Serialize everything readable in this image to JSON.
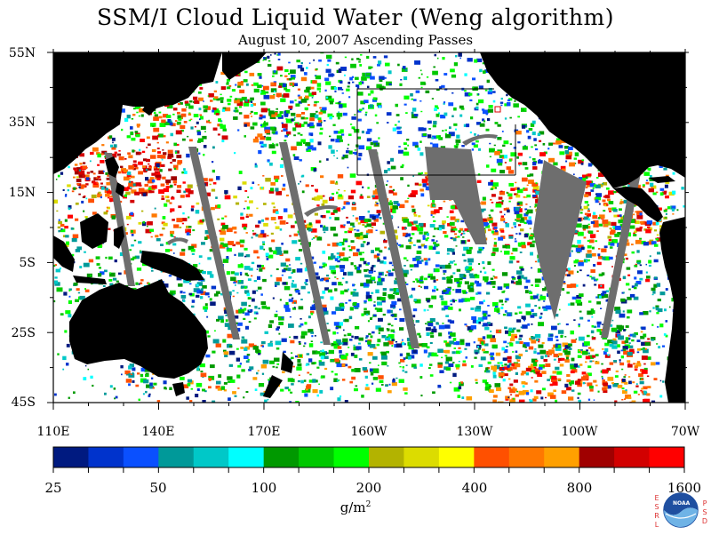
{
  "title": "SSM/I Cloud Liquid Water (Weng algorithm)",
  "subtitle": "August 10, 2007  Ascending Passes",
  "lat_labels": [
    "55N",
    "35N",
    "15N",
    "5S",
    "25S",
    "45S"
  ],
  "lon_labels": [
    "110E",
    "140E",
    "170E",
    "160W",
    "130W",
    "100W",
    "70W"
  ],
  "colorbar": {
    "labels": [
      "25",
      "50",
      "100",
      "200",
      "400",
      "800",
      "1600"
    ],
    "colors": [
      "#001a80",
      "#0033cc",
      "#0a50ff",
      "#009999",
      "#00c8c8",
      "#00ffff",
      "#009900",
      "#00c800",
      "#00ff00",
      "#b3b300",
      "#dcdc00",
      "#ffff00",
      "#ff5000",
      "#ff7800",
      "#ffa000",
      "#a00000",
      "#d20000",
      "#ff0000"
    ],
    "unit_text": "g/m",
    "unit_sup": "2"
  },
  "logo": {
    "text": "NOAA",
    "left_letters": [
      "E",
      "S",
      "R",
      "L"
    ],
    "right_letters": [
      "P",
      "S",
      "D"
    ]
  },
  "colors": {
    "land": "#000000",
    "missing": "#6e6e6e",
    "ocean_clear": "#ffffff",
    "frame": "#000000"
  }
}
